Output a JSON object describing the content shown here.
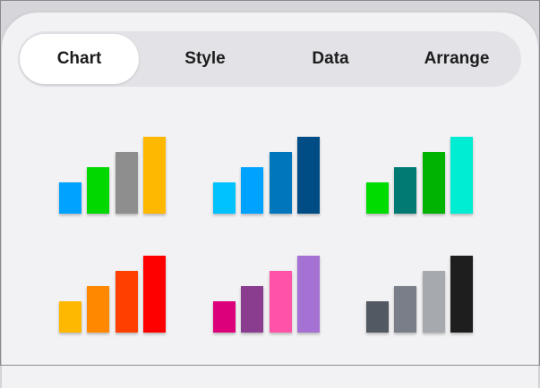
{
  "tabs": [
    {
      "label": "Chart",
      "selected": true
    },
    {
      "label": "Style",
      "selected": false
    },
    {
      "label": "Data",
      "selected": false
    },
    {
      "label": "Arrange",
      "selected": false
    }
  ],
  "chart_styles": [
    {
      "colors": [
        "#00a2ff",
        "#00d800",
        "#8e8e8e",
        "#ffb800"
      ]
    },
    {
      "colors": [
        "#00c2ff",
        "#00a2ff",
        "#0076bd",
        "#004d85"
      ]
    },
    {
      "colors": [
        "#00db00",
        "#007a73",
        "#00b300",
        "#00ecd3"
      ]
    },
    {
      "colors": [
        "#ffb800",
        "#ff8800",
        "#ff3f00",
        "#ff0000"
      ]
    },
    {
      "colors": [
        "#dc007a",
        "#8a3c8f",
        "#ff52a8",
        "#a571d3"
      ]
    },
    {
      "colors": [
        "#535962",
        "#797e88",
        "#a6a9ad",
        "#1e1e1e"
      ]
    }
  ]
}
